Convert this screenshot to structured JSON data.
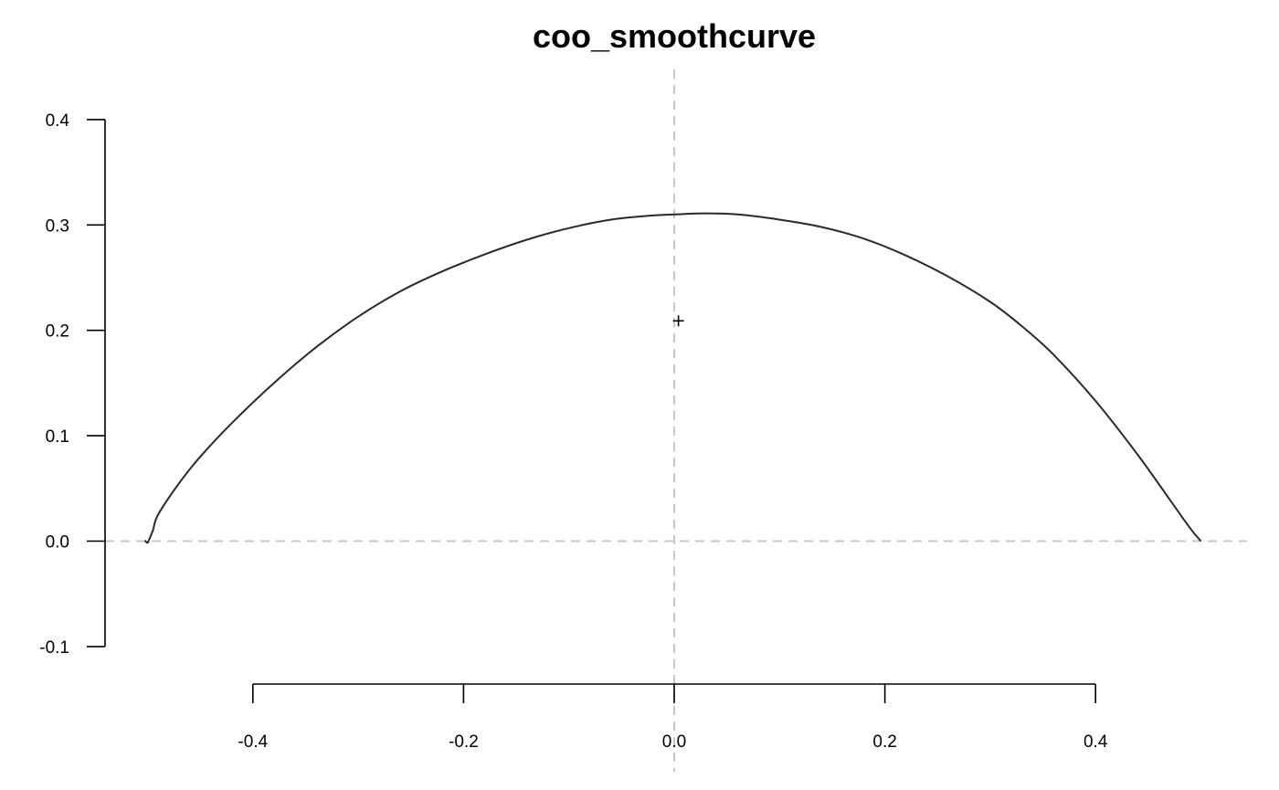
{
  "chart_data": {
    "type": "line",
    "title": "coo_smoothcurve",
    "xlabel": "",
    "ylabel": "",
    "xlim": [
      -0.5,
      0.5
    ],
    "ylim": [
      -0.1,
      0.4
    ],
    "x_ticks": [
      -0.4,
      -0.2,
      0.0,
      0.2,
      0.4
    ],
    "x_tick_labels": [
      "-0.4",
      "-0.2",
      "0.0",
      "0.2",
      "0.4"
    ],
    "y_ticks": [
      -0.1,
      0.0,
      0.1,
      0.2,
      0.3,
      0.4
    ],
    "y_tick_labels": [
      "-0.1",
      "0.0",
      "0.1",
      "0.2",
      "0.3",
      "0.4"
    ],
    "grid": false,
    "reference_lines": {
      "x": 0.0,
      "y": 0.0,
      "style": "dashed",
      "color": "#c8c8c8"
    },
    "series": [
      {
        "color": "#2a2a2a",
        "x": [
          -0.5,
          -0.495,
          -0.49,
          -0.47,
          -0.45,
          -0.42,
          -0.38,
          -0.34,
          -0.3,
          -0.26,
          -0.22,
          -0.18,
          -0.14,
          -0.1,
          -0.06,
          -0.02,
          0.0,
          0.03,
          0.06,
          0.1,
          0.14,
          0.18,
          0.22,
          0.26,
          0.3,
          0.33,
          0.36,
          0.4,
          0.44,
          0.47,
          0.49,
          0.5
        ],
        "y": [
          -0.002,
          0.01,
          0.025,
          0.055,
          0.08,
          0.112,
          0.15,
          0.184,
          0.213,
          0.237,
          0.256,
          0.272,
          0.286,
          0.297,
          0.305,
          0.309,
          0.31,
          0.311,
          0.31,
          0.305,
          0.298,
          0.287,
          0.271,
          0.251,
          0.227,
          0.204,
          0.177,
          0.133,
          0.082,
          0.04,
          0.012,
          0.0
        ]
      }
    ],
    "centroid": {
      "x": 0.004,
      "y": 0.209,
      "marker": "+"
    }
  }
}
